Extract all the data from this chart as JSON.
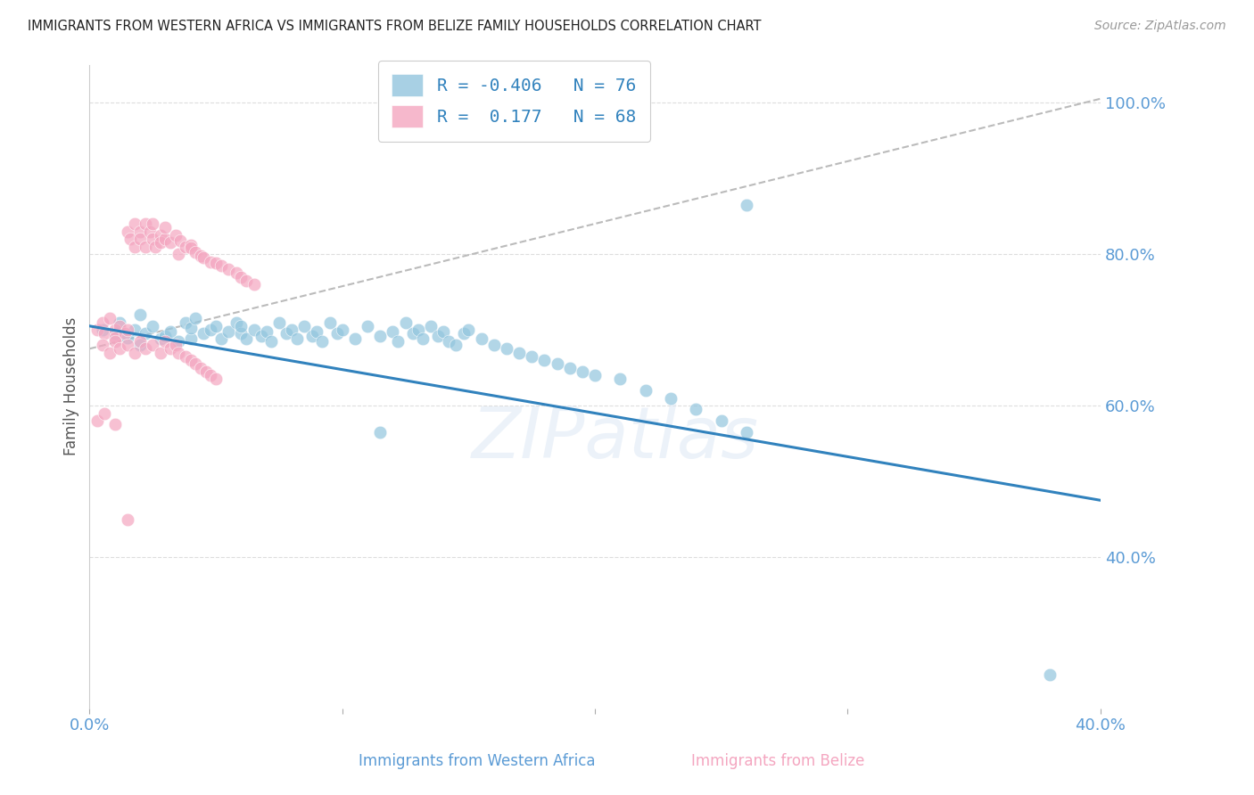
{
  "title": "IMMIGRANTS FROM WESTERN AFRICA VS IMMIGRANTS FROM BELIZE FAMILY HOUSEHOLDS CORRELATION CHART",
  "source": "Source: ZipAtlas.com",
  "ylabel": "Family Households",
  "xlabel_blue": "Immigrants from Western Africa",
  "xlabel_pink": "Immigrants from Belize",
  "legend_blue_R": "-0.406",
  "legend_blue_N": "76",
  "legend_pink_R": " 0.177",
  "legend_pink_N": "68",
  "blue_color": "#92c5de",
  "pink_color": "#f4a6c0",
  "blue_line_color": "#3182bd",
  "pink_line_dashes": [
    6,
    4
  ],
  "pink_line_color": "#cccccc",
  "axis_label_color": "#5b9bd5",
  "ylabel_color": "#555555",
  "xlim": [
    0.0,
    0.4
  ],
  "ylim": [
    0.2,
    1.05
  ],
  "blue_scatter_x": [
    0.005,
    0.01,
    0.012,
    0.015,
    0.018,
    0.02,
    0.02,
    0.022,
    0.025,
    0.028,
    0.03,
    0.032,
    0.035,
    0.038,
    0.04,
    0.04,
    0.042,
    0.045,
    0.048,
    0.05,
    0.052,
    0.055,
    0.058,
    0.06,
    0.06,
    0.062,
    0.065,
    0.068,
    0.07,
    0.072,
    0.075,
    0.078,
    0.08,
    0.082,
    0.085,
    0.088,
    0.09,
    0.092,
    0.095,
    0.098,
    0.1,
    0.105,
    0.11,
    0.115,
    0.115,
    0.12,
    0.122,
    0.125,
    0.128,
    0.13,
    0.132,
    0.135,
    0.138,
    0.14,
    0.142,
    0.145,
    0.148,
    0.15,
    0.155,
    0.16,
    0.165,
    0.17,
    0.175,
    0.18,
    0.185,
    0.19,
    0.195,
    0.2,
    0.21,
    0.22,
    0.23,
    0.24,
    0.25,
    0.26,
    0.38,
    0.26
  ],
  "blue_scatter_y": [
    0.7,
    0.695,
    0.71,
    0.69,
    0.7,
    0.68,
    0.72,
    0.695,
    0.705,
    0.688,
    0.692,
    0.698,
    0.685,
    0.71,
    0.688,
    0.702,
    0.715,
    0.695,
    0.7,
    0.705,
    0.688,
    0.698,
    0.71,
    0.695,
    0.705,
    0.688,
    0.7,
    0.692,
    0.698,
    0.685,
    0.71,
    0.695,
    0.7,
    0.688,
    0.705,
    0.692,
    0.698,
    0.685,
    0.71,
    0.695,
    0.7,
    0.688,
    0.705,
    0.692,
    0.565,
    0.698,
    0.685,
    0.71,
    0.695,
    0.7,
    0.688,
    0.705,
    0.692,
    0.698,
    0.685,
    0.68,
    0.695,
    0.7,
    0.688,
    0.68,
    0.675,
    0.67,
    0.665,
    0.66,
    0.655,
    0.65,
    0.645,
    0.64,
    0.635,
    0.62,
    0.61,
    0.595,
    0.58,
    0.565,
    0.245,
    0.865
  ],
  "pink_scatter_x": [
    0.003,
    0.005,
    0.006,
    0.008,
    0.01,
    0.01,
    0.012,
    0.014,
    0.015,
    0.015,
    0.016,
    0.018,
    0.018,
    0.02,
    0.02,
    0.022,
    0.022,
    0.024,
    0.025,
    0.025,
    0.026,
    0.028,
    0.028,
    0.03,
    0.03,
    0.032,
    0.034,
    0.035,
    0.036,
    0.038,
    0.04,
    0.04,
    0.042,
    0.044,
    0.045,
    0.048,
    0.05,
    0.052,
    0.055,
    0.058,
    0.06,
    0.062,
    0.065,
    0.005,
    0.008,
    0.01,
    0.012,
    0.015,
    0.018,
    0.02,
    0.022,
    0.025,
    0.028,
    0.03,
    0.032,
    0.034,
    0.035,
    0.038,
    0.04,
    0.042,
    0.044,
    0.046,
    0.048,
    0.05,
    0.003,
    0.006,
    0.01,
    0.015
  ],
  "pink_scatter_y": [
    0.7,
    0.71,
    0.695,
    0.715,
    0.7,
    0.69,
    0.705,
    0.695,
    0.7,
    0.83,
    0.82,
    0.84,
    0.81,
    0.83,
    0.82,
    0.84,
    0.81,
    0.83,
    0.82,
    0.84,
    0.81,
    0.825,
    0.815,
    0.82,
    0.835,
    0.815,
    0.825,
    0.8,
    0.818,
    0.81,
    0.812,
    0.808,
    0.802,
    0.798,
    0.795,
    0.79,
    0.788,
    0.785,
    0.78,
    0.775,
    0.77,
    0.765,
    0.76,
    0.68,
    0.67,
    0.685,
    0.675,
    0.68,
    0.67,
    0.685,
    0.675,
    0.68,
    0.67,
    0.685,
    0.675,
    0.68,
    0.67,
    0.665,
    0.66,
    0.655,
    0.65,
    0.645,
    0.64,
    0.635,
    0.58,
    0.59,
    0.575,
    0.45
  ]
}
